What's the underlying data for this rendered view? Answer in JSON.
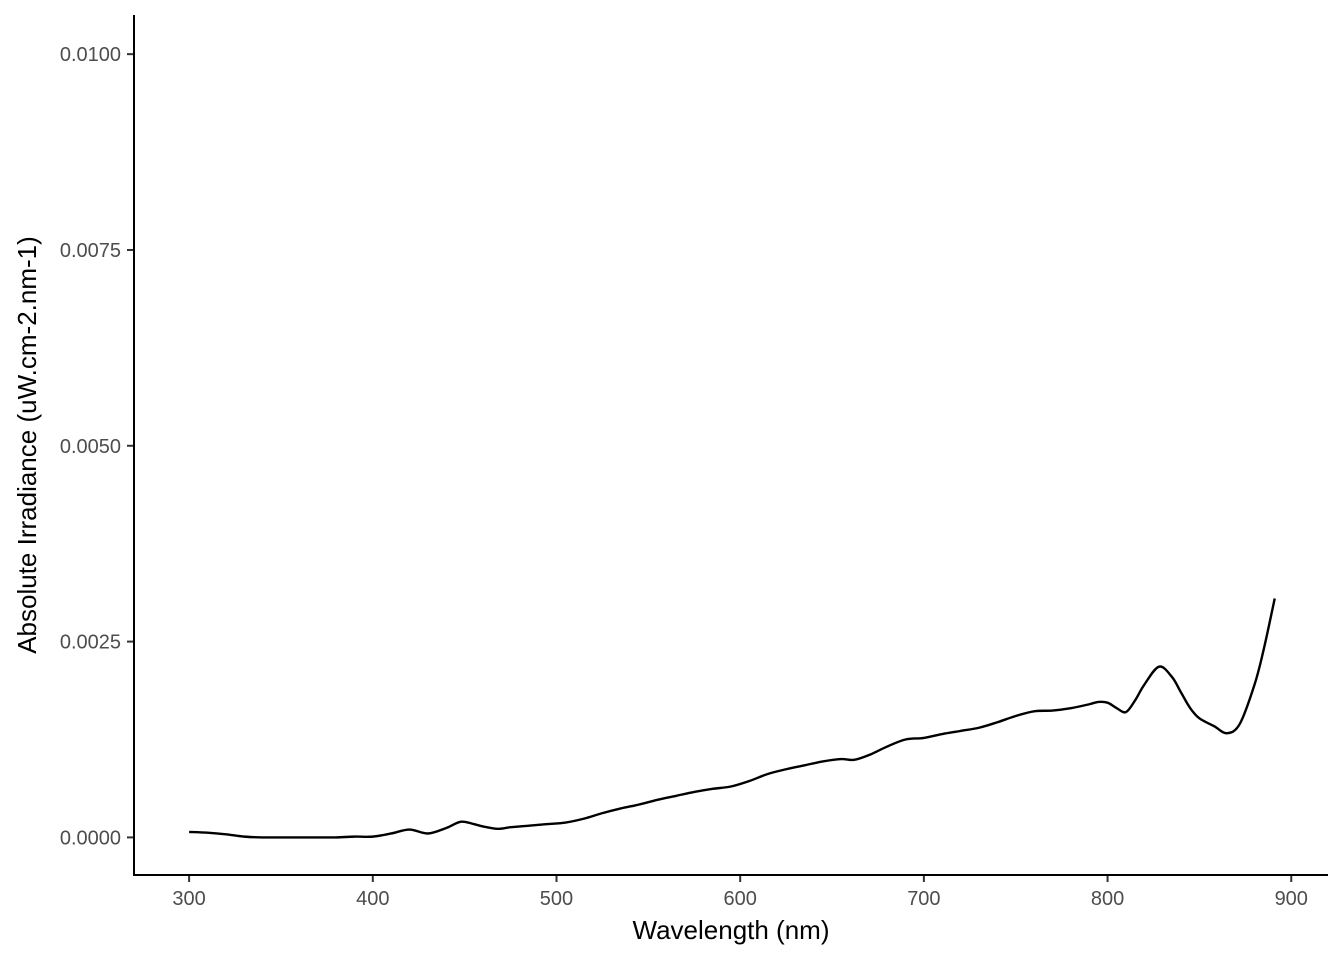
{
  "chart_data": {
    "type": "line",
    "title": "",
    "xlabel": "Wavelength (nm)",
    "ylabel": "Absolute Irradiance (uW.cm-2.nm-1)",
    "xlim": [
      270,
      920
    ],
    "ylim": [
      -0.00048,
      0.0105
    ],
    "x_ticks": [
      300,
      400,
      500,
      600,
      700,
      800,
      900
    ],
    "x_tick_labels": [
      "300",
      "400",
      "500",
      "600",
      "700",
      "800",
      "900"
    ],
    "y_ticks": [
      0.0,
      0.0025,
      0.005,
      0.0075,
      0.01
    ],
    "y_tick_labels": [
      "0.0000",
      "0.0025",
      "0.0050",
      "0.0075",
      "0.0100"
    ],
    "grid": false,
    "line_color": "#000000",
    "series": [
      {
        "x": [
          300,
          310,
          320,
          330,
          340,
          350,
          360,
          370,
          380,
          390,
          400,
          410,
          420,
          430,
          440,
          448,
          455,
          460,
          468,
          475,
          485,
          495,
          505,
          515,
          525,
          535,
          545,
          555,
          565,
          575,
          585,
          595,
          605,
          615,
          625,
          635,
          645,
          655,
          662,
          670,
          680,
          690,
          700,
          710,
          720,
          730,
          740,
          750,
          760,
          770,
          780,
          790,
          795,
          800,
          805,
          810,
          815,
          820,
          828,
          835,
          840,
          845,
          850,
          858,
          865,
          872,
          880,
          885,
          891
        ],
        "y": [
          7e-05,
          6e-05,
          4e-05,
          1e-05,
          0.0,
          0.0,
          0.0,
          0.0,
          0.0,
          1e-05,
          1e-05,
          5e-05,
          0.0001,
          5e-05,
          0.00012,
          0.0002,
          0.00017,
          0.00014,
          0.00011,
          0.00013,
          0.00015,
          0.00017,
          0.00019,
          0.00024,
          0.00031,
          0.00037,
          0.00042,
          0.00048,
          0.00053,
          0.00058,
          0.00062,
          0.00065,
          0.00072,
          0.00081,
          0.00087,
          0.00092,
          0.00097,
          0.001,
          0.00099,
          0.00105,
          0.00116,
          0.00125,
          0.00127,
          0.00132,
          0.00136,
          0.0014,
          0.00147,
          0.00155,
          0.00161,
          0.00162,
          0.00165,
          0.0017,
          0.00173,
          0.00172,
          0.00165,
          0.0016,
          0.00175,
          0.00195,
          0.00218,
          0.00205,
          0.00185,
          0.00165,
          0.00152,
          0.00142,
          0.00133,
          0.00145,
          0.00195,
          0.0024,
          0.00305
        ]
      }
    ]
  }
}
